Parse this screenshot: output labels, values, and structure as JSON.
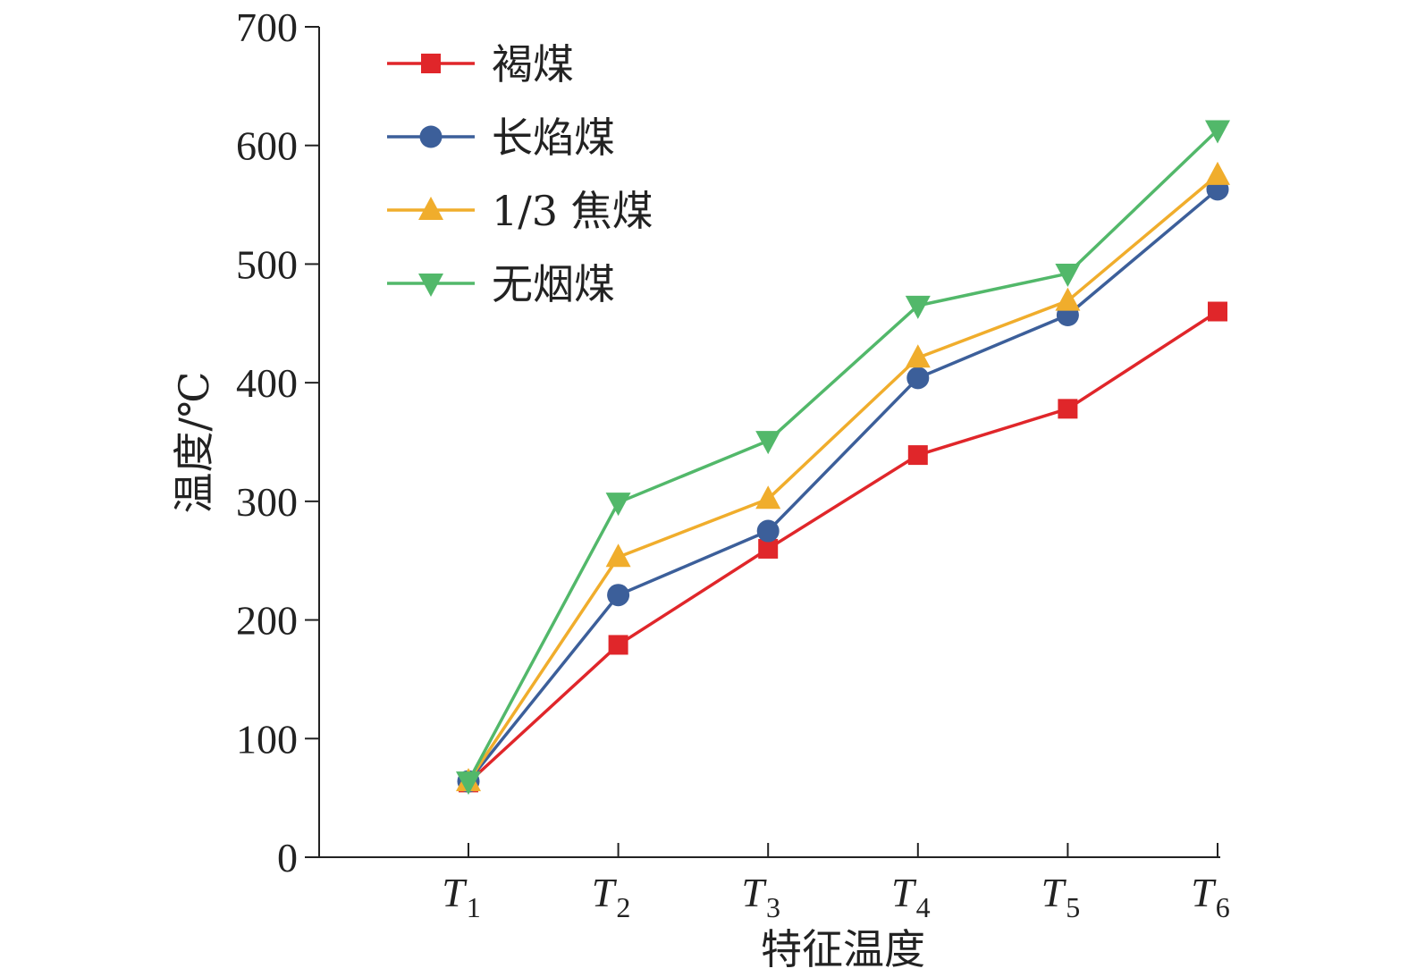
{
  "chart_data": {
    "type": "line",
    "categories": [
      {
        "main": "T",
        "sub": "1"
      },
      {
        "main": "T",
        "sub": "2"
      },
      {
        "main": "T",
        "sub": "3"
      },
      {
        "main": "T",
        "sub": "4"
      },
      {
        "main": "T",
        "sub": "5"
      },
      {
        "main": "T",
        "sub": "6"
      }
    ],
    "series": [
      {
        "name": "褐煤",
        "color": "#e0262a",
        "marker": "square",
        "values": [
          63,
          179,
          260,
          339,
          378,
          460
        ]
      },
      {
        "name": "长焰煤",
        "color": "#3c5f9a",
        "marker": "circle",
        "values": [
          64,
          221,
          275,
          404,
          457,
          563
        ]
      },
      {
        "name": "1/3 焦煤",
        "color": "#f0ad2c",
        "marker": "triangle-up",
        "values": [
          64,
          253,
          302,
          421,
          469,
          575
        ]
      },
      {
        "name": "无烟煤",
        "color": "#52b86a",
        "marker": "triangle-down",
        "values": [
          64,
          299,
          351,
          465,
          492,
          613
        ]
      }
    ],
    "title": "",
    "xlabel": "特征温度",
    "ylabel": "温度/℃",
    "ylim": [
      0,
      700
    ],
    "yticks": [
      "0",
      "100",
      "200",
      "300",
      "400",
      "500",
      "600",
      "700"
    ],
    "grid": false,
    "legend": "top-left"
  }
}
